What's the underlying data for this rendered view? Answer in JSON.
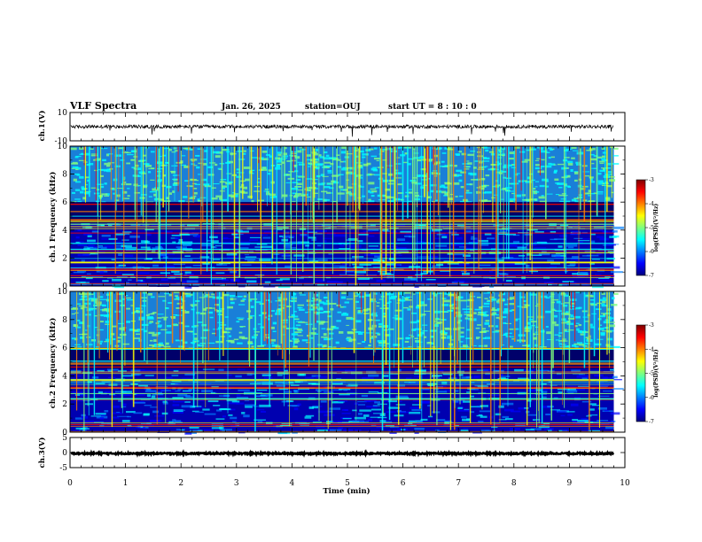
{
  "header": {
    "title": "VLF Spectra",
    "date": "Jan. 26, 2025",
    "station": "station=OUJ",
    "start": "start UT =  8 : 10 : 0"
  },
  "colors": {
    "waveform": "#000000",
    "background": "#ffffff",
    "frame": "#000000",
    "colormap": [
      "#00007f",
      "#0000ff",
      "#007fff",
      "#00ffff",
      "#7fff7f",
      "#ffff00",
      "#ff7f00",
      "#ff0000",
      "#7f0000"
    ]
  },
  "chart_data": [
    {
      "type": "line",
      "panel": "ch1-waveform",
      "ylabel": "ch.1(V)",
      "ylim": [
        -10,
        10
      ],
      "yticks": [
        "10",
        "-10"
      ],
      "xlim": [
        0,
        10
      ],
      "series": [
        {
          "baseline": 0,
          "amplitude": 1.2,
          "gap_end_min": 9.8
        }
      ]
    },
    {
      "type": "heatmap",
      "panel": "ch1-spectrogram",
      "ylabel": "ch.1 Frequency (kHz)",
      "ylim": [
        0,
        10
      ],
      "yticks": [
        "0",
        "2",
        "4",
        "6",
        "8",
        "10"
      ],
      "xlim": [
        0,
        10
      ],
      "data_end_min": 9.8,
      "quiet_band_khz": [
        4.5,
        6.0
      ],
      "colorbar": {
        "label": "log(PSD)(V²/Hz)",
        "range": [
          -7,
          -3
        ],
        "ticks": [
          "-3",
          "-4",
          "-5",
          "-6",
          "-7"
        ]
      }
    },
    {
      "type": "heatmap",
      "panel": "ch2-spectrogram",
      "ylabel": "ch.2 Frequency (kHz)",
      "ylim": [
        0,
        10
      ],
      "yticks": [
        "0",
        "2",
        "4",
        "6",
        "8",
        "10"
      ],
      "xlim": [
        0,
        10
      ],
      "data_end_min": 9.8,
      "quiet_band_khz": [
        4.5,
        6.0
      ],
      "colorbar": {
        "label": "log(PSD)(V²/Hz)",
        "range": [
          -7,
          -3
        ],
        "ticks": [
          "-3",
          "-4",
          "-5",
          "-6",
          "-7"
        ]
      }
    },
    {
      "type": "line",
      "panel": "ch3-waveform",
      "ylabel": "ch.3(V)",
      "ylim": [
        -5,
        5
      ],
      "yticks": [
        "5",
        "0",
        "-5"
      ],
      "xlim": [
        0,
        10
      ],
      "series": [
        {
          "baseline": -0.3,
          "amplitude": 0.25,
          "gap_end_min": 9.8
        }
      ]
    }
  ],
  "xaxis": {
    "label": "Time (min)",
    "ticks": [
      "0",
      "1",
      "2",
      "3",
      "4",
      "5",
      "6",
      "7",
      "8",
      "9",
      "10"
    ]
  }
}
